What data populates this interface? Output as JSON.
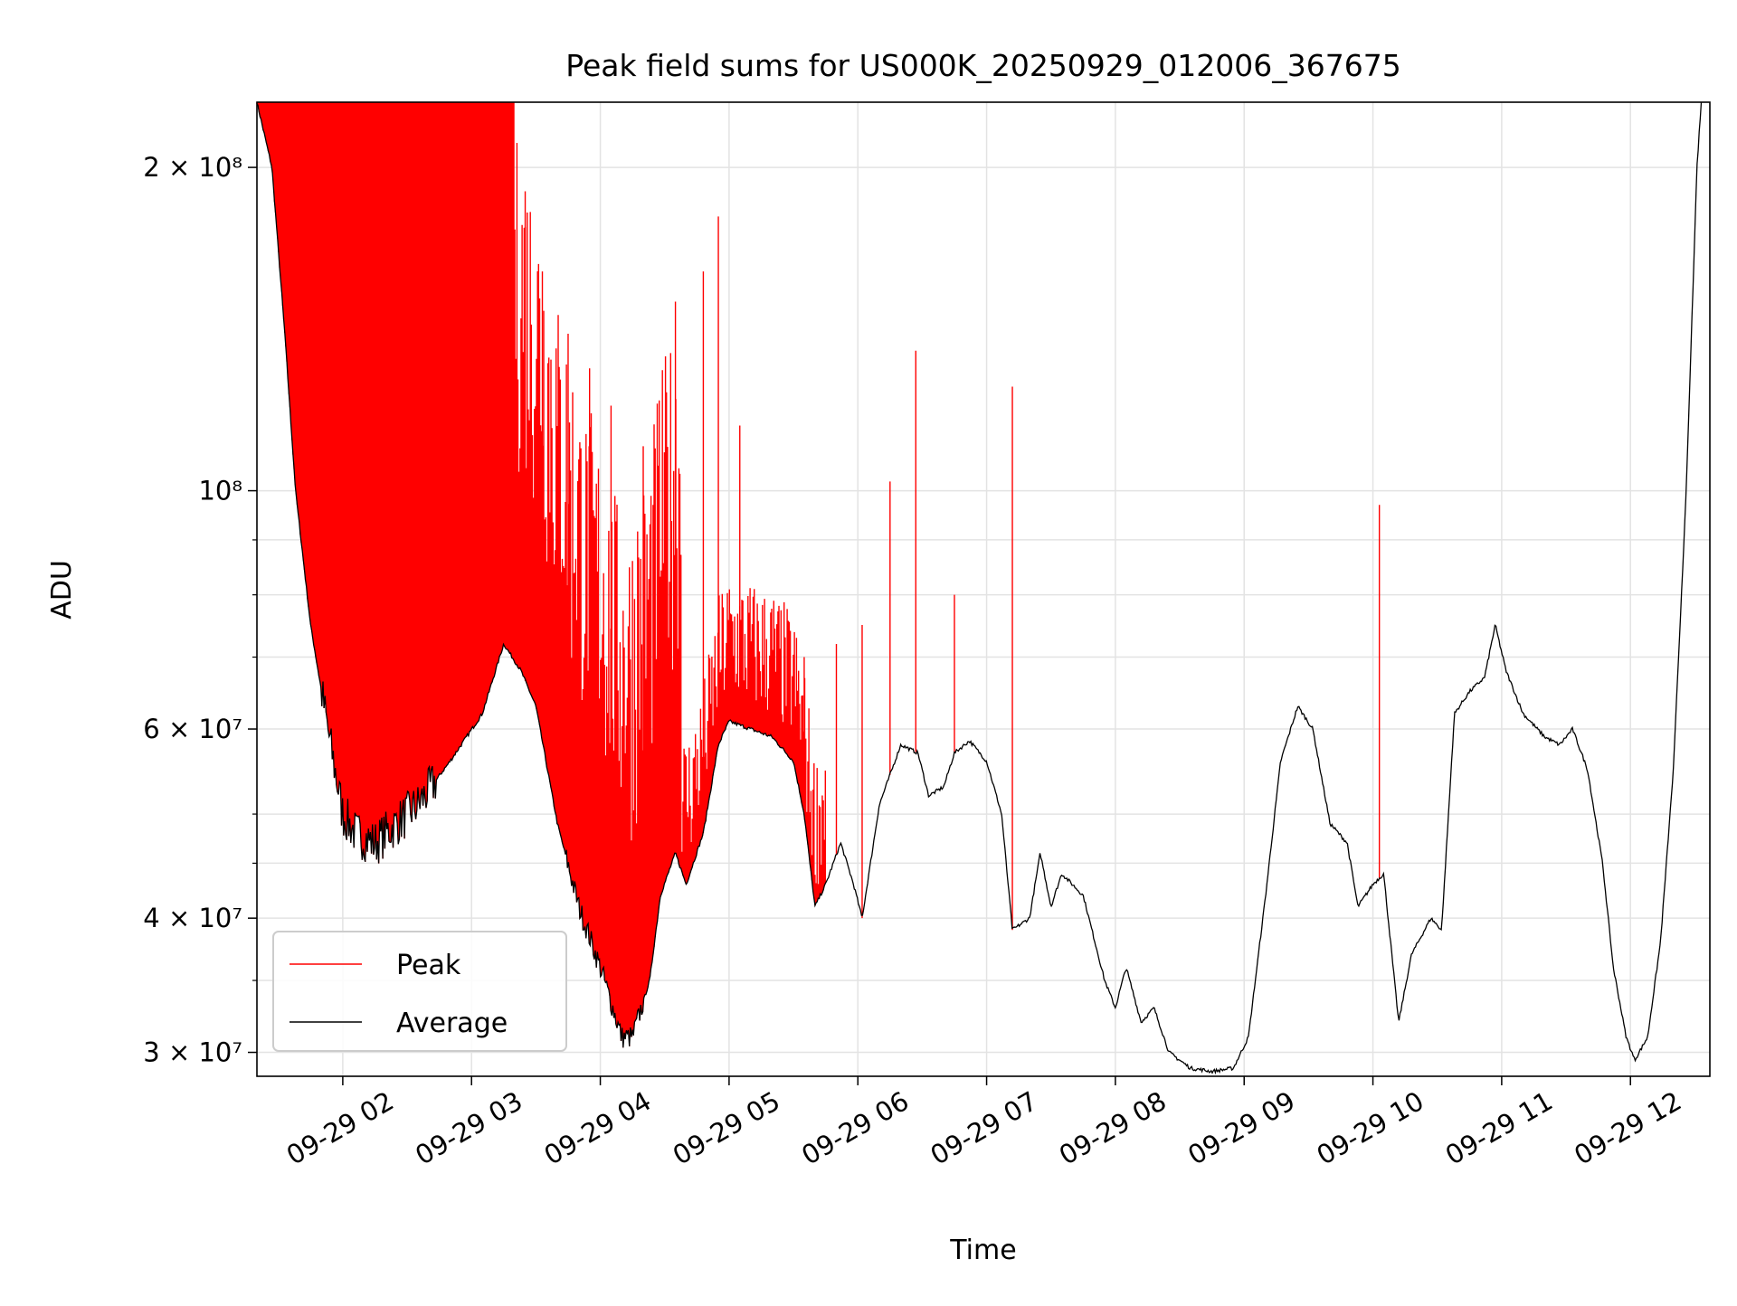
{
  "chart_data": {
    "type": "line",
    "title": "Peak field sums for US000K_20250929_012006_367675",
    "xlabel": "Time",
    "ylabel": "ADU",
    "y_scale": "log",
    "ylim": [
      28500000,
      230000000
    ],
    "xlim": [
      "2025-09-29 01:20",
      "2025-09-29 12:37"
    ],
    "grid": true,
    "legend_position": "lower-left",
    "x_ticks": [
      {
        "t": "2025-09-29 02:00",
        "label": "09-29 02"
      },
      {
        "t": "2025-09-29 03:00",
        "label": "09-29 03"
      },
      {
        "t": "2025-09-29 04:00",
        "label": "09-29 04"
      },
      {
        "t": "2025-09-29 05:00",
        "label": "09-29 05"
      },
      {
        "t": "2025-09-29 06:00",
        "label": "09-29 06"
      },
      {
        "t": "2025-09-29 07:00",
        "label": "09-29 07"
      },
      {
        "t": "2025-09-29 08:00",
        "label": "09-29 08"
      },
      {
        "t": "2025-09-29 09:00",
        "label": "09-29 09"
      },
      {
        "t": "2025-09-29 10:00",
        "label": "09-29 10"
      },
      {
        "t": "2025-09-29 11:00",
        "label": "09-29 11"
      },
      {
        "t": "2025-09-29 12:00",
        "label": "09-29 12"
      }
    ],
    "y_ticks": [
      {
        "value": 30000000,
        "label": "3 × 10⁷"
      },
      {
        "value": 40000000,
        "label": "4 × 10⁷"
      },
      {
        "value": 60000000,
        "label": "6 × 10⁷"
      },
      {
        "value": 100000000,
        "label": "10⁸"
      },
      {
        "value": 200000000,
        "label": "2 × 10⁸"
      }
    ],
    "series": [
      {
        "name": "Average",
        "color": "#000000",
        "points": [
          [
            "2025-09-29 01:20",
            230000000
          ],
          [
            "2025-09-29 01:27",
            200000000
          ],
          [
            "2025-09-29 01:33",
            140000000
          ],
          [
            "2025-09-29 01:38",
            100000000
          ],
          [
            "2025-09-29 01:45",
            75000000
          ],
          [
            "2025-09-29 01:53",
            60000000
          ],
          [
            "2025-09-29 02:00",
            50000000
          ],
          [
            "2025-09-29 02:06",
            48000000
          ],
          [
            "2025-09-29 02:15",
            47000000
          ],
          [
            "2025-09-29 02:25",
            49000000
          ],
          [
            "2025-09-29 02:35",
            51000000
          ],
          [
            "2025-09-29 02:50",
            56000000
          ],
          [
            "2025-09-29 03:05",
            62000000
          ],
          [
            "2025-09-29 03:15",
            72000000
          ],
          [
            "2025-09-29 03:23",
            68000000
          ],
          [
            "2025-09-29 03:30",
            63000000
          ],
          [
            "2025-09-29 03:40",
            49000000
          ],
          [
            "2025-09-29 03:50",
            41000000
          ],
          [
            "2025-09-29 04:00",
            36000000
          ],
          [
            "2025-09-29 04:10",
            31000000
          ],
          [
            "2025-09-29 04:15",
            31000000
          ],
          [
            "2025-09-29 04:23",
            35000000
          ],
          [
            "2025-09-29 04:28",
            42000000
          ],
          [
            "2025-09-29 04:35",
            46000000
          ],
          [
            "2025-09-29 04:40",
            43000000
          ],
          [
            "2025-09-29 04:48",
            48000000
          ],
          [
            "2025-09-29 04:55",
            58000000
          ],
          [
            "2025-09-29 05:00",
            61000000
          ],
          [
            "2025-09-29 05:10",
            60000000
          ],
          [
            "2025-09-29 05:20",
            59000000
          ],
          [
            "2025-09-29 05:30",
            56000000
          ],
          [
            "2025-09-29 05:35",
            50000000
          ],
          [
            "2025-09-29 05:40",
            41000000
          ],
          [
            "2025-09-29 05:45",
            43000000
          ],
          [
            "2025-09-29 05:52",
            47000000
          ],
          [
            "2025-09-29 05:58",
            43000000
          ],
          [
            "2025-09-29 06:02",
            40000000
          ],
          [
            "2025-09-29 06:10",
            51000000
          ],
          [
            "2025-09-29 06:20",
            58000000
          ],
          [
            "2025-09-29 06:28",
            57000000
          ],
          [
            "2025-09-29 06:33",
            52000000
          ],
          [
            "2025-09-29 06:40",
            53000000
          ],
          [
            "2025-09-29 06:45",
            57000000
          ],
          [
            "2025-09-29 06:52",
            58500000
          ],
          [
            "2025-09-29 07:00",
            56000000
          ],
          [
            "2025-09-29 07:07",
            50000000
          ],
          [
            "2025-09-29 07:12",
            39000000
          ],
          [
            "2025-09-29 07:20",
            40000000
          ],
          [
            "2025-09-29 07:25",
            46000000
          ],
          [
            "2025-09-29 07:30",
            41000000
          ],
          [
            "2025-09-29 07:35",
            44000000
          ],
          [
            "2025-09-29 07:45",
            42000000
          ],
          [
            "2025-09-29 07:55",
            35000000
          ],
          [
            "2025-09-29 08:00",
            33000000
          ],
          [
            "2025-09-29 08:05",
            36000000
          ],
          [
            "2025-09-29 08:12",
            32000000
          ],
          [
            "2025-09-29 08:18",
            33000000
          ],
          [
            "2025-09-29 08:25",
            30000000
          ],
          [
            "2025-09-29 08:35",
            29000000
          ],
          [
            "2025-09-29 08:45",
            28800000
          ],
          [
            "2025-09-29 08:55",
            29000000
          ],
          [
            "2025-09-29 09:02",
            31000000
          ],
          [
            "2025-09-29 09:10",
            42000000
          ],
          [
            "2025-09-29 09:17",
            56000000
          ],
          [
            "2025-09-29 09:25",
            63000000
          ],
          [
            "2025-09-29 09:32",
            60000000
          ],
          [
            "2025-09-29 09:40",
            49000000
          ],
          [
            "2025-09-29 09:48",
            47000000
          ],
          [
            "2025-09-29 09:53",
            41000000
          ],
          [
            "2025-09-29 10:00",
            43000000
          ],
          [
            "2025-09-29 10:05",
            44000000
          ],
          [
            "2025-09-29 10:12",
            32000000
          ],
          [
            "2025-09-29 10:18",
            37000000
          ],
          [
            "2025-09-29 10:27",
            40000000
          ],
          [
            "2025-09-29 10:32",
            39000000
          ],
          [
            "2025-09-29 10:38",
            62000000
          ],
          [
            "2025-09-29 10:45",
            65000000
          ],
          [
            "2025-09-29 10:52",
            67000000
          ],
          [
            "2025-09-29 10:57",
            75000000
          ],
          [
            "2025-09-29 11:02",
            68000000
          ],
          [
            "2025-09-29 11:10",
            62000000
          ],
          [
            "2025-09-29 11:20",
            59000000
          ],
          [
            "2025-09-29 11:27",
            58000000
          ],
          [
            "2025-09-29 11:33",
            60000000
          ],
          [
            "2025-09-29 11:40",
            55000000
          ],
          [
            "2025-09-29 11:47",
            45000000
          ],
          [
            "2025-09-29 11:52",
            36000000
          ],
          [
            "2025-09-29 11:58",
            31000000
          ],
          [
            "2025-09-29 12:02",
            29500000
          ],
          [
            "2025-09-29 12:08",
            31000000
          ],
          [
            "2025-09-29 12:14",
            38000000
          ],
          [
            "2025-09-29 12:20",
            55000000
          ],
          [
            "2025-09-29 12:26",
            100000000
          ],
          [
            "2025-09-29 12:31",
            200000000
          ],
          [
            "2025-09-29 12:33",
            230000000
          ]
        ]
      },
      {
        "name": "Peak",
        "color": "#ff0000",
        "spikes": [
          [
            "2025-09-29 03:15",
            230000000
          ],
          [
            "2025-09-29 03:25",
            190000000
          ],
          [
            "2025-09-29 03:33",
            160000000
          ],
          [
            "2025-09-29 03:45",
            140000000
          ],
          [
            "2025-09-29 03:55",
            130000000
          ],
          [
            "2025-09-29 04:05",
            120000000
          ],
          [
            "2025-09-29 04:20",
            110000000
          ],
          [
            "2025-09-29 04:35",
            150000000
          ],
          [
            "2025-09-29 04:48",
            160000000
          ],
          [
            "2025-09-29 04:55",
            180000000
          ],
          [
            "2025-09-29 05:05",
            115000000
          ],
          [
            "2025-09-29 05:35",
            70000000
          ],
          [
            "2025-09-29 05:50",
            72000000
          ],
          [
            "2025-09-29 06:02",
            75000000
          ],
          [
            "2025-09-29 06:15",
            102000000
          ],
          [
            "2025-09-29 06:27",
            135000000
          ],
          [
            "2025-09-29 06:45",
            80000000
          ],
          [
            "2025-09-29 07:12",
            125000000
          ],
          [
            "2025-09-29 10:03",
            97000000
          ]
        ]
      }
    ]
  }
}
